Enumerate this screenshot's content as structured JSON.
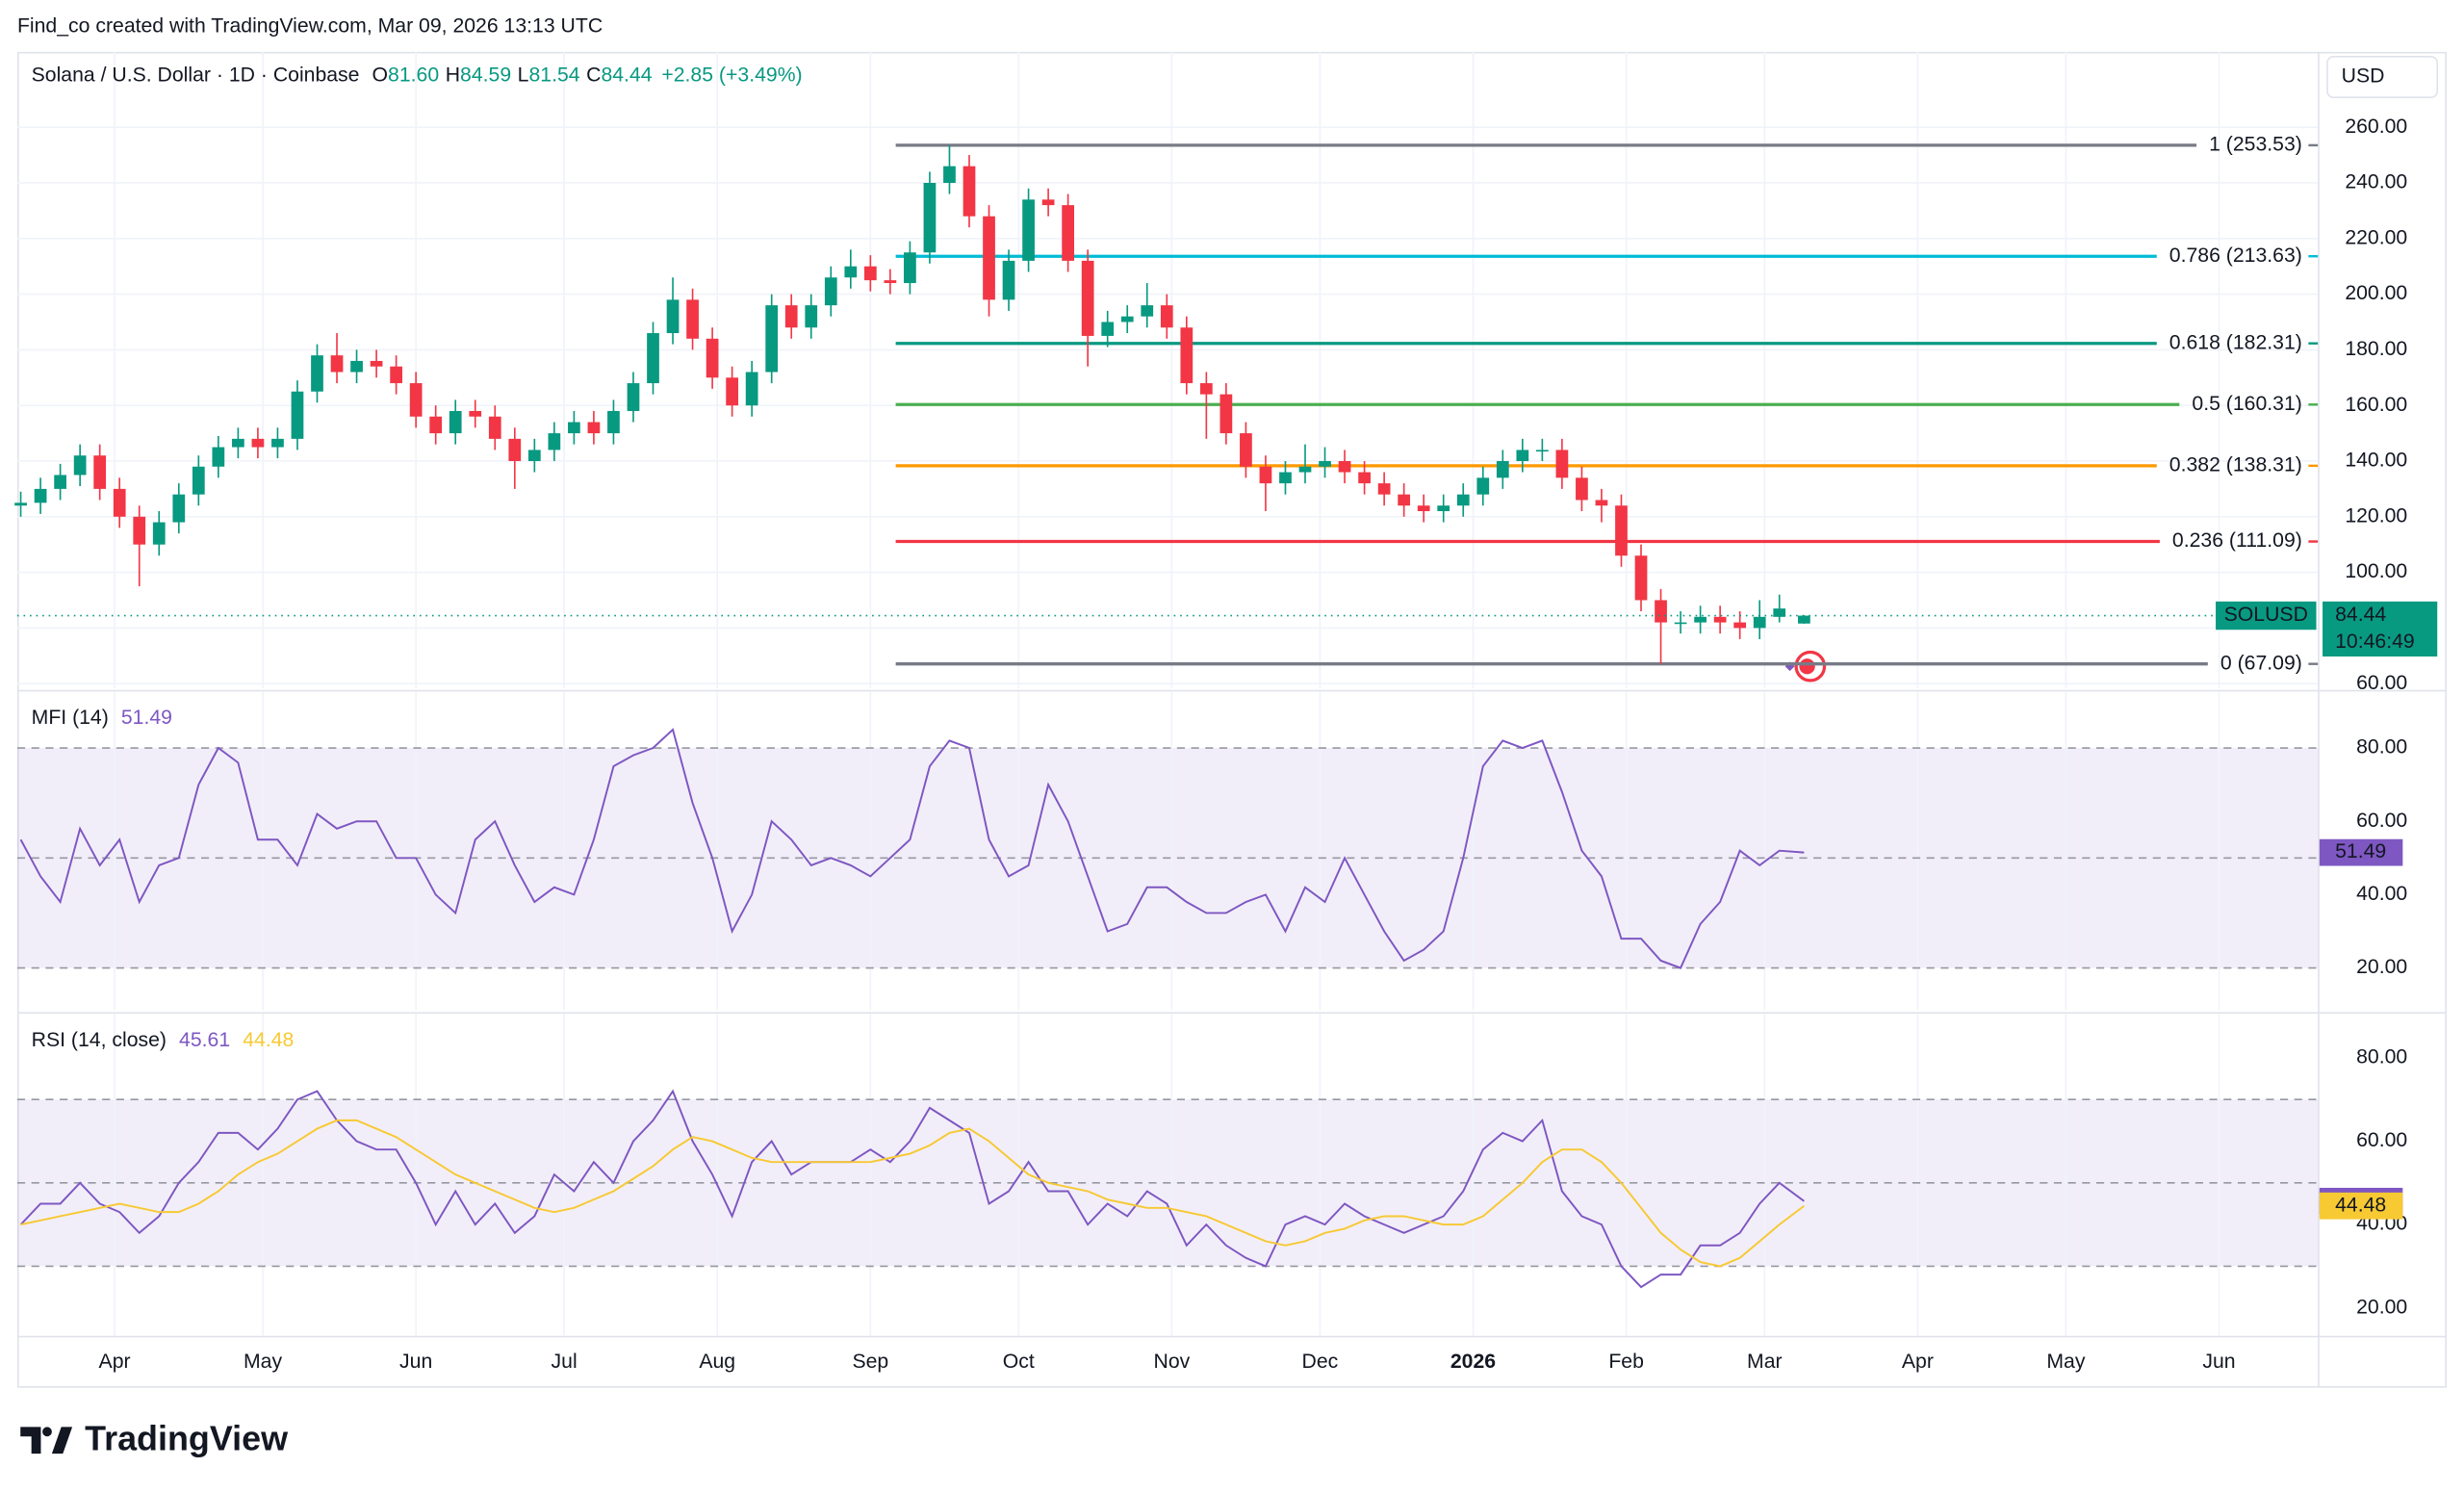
{
  "watermark": {
    "credit": "Find_co created with TradingView.com, Mar 09, 2026 13:13 UTC",
    "brand": "TradingView"
  },
  "chart_data": [
    {
      "type": "candlestick",
      "title": "Solana / U.S. Dollar · 1D · Coinbase",
      "legend": [
        {
          "key": "O",
          "value": "81.60"
        },
        {
          "key": "H",
          "value": "84.59"
        },
        {
          "key": "L",
          "value": "81.54"
        },
        {
          "key": "C",
          "value": "84.44"
        }
      ],
      "change": "+2.85 (+3.49%)",
      "legend_color": "#089981",
      "unit": "USD",
      "up_color": "#089981",
      "down_color": "#f23645",
      "grid": true,
      "xlim": [
        -0.7,
        465
      ],
      "xticks": [
        {
          "value": 19,
          "label": "Apr"
        },
        {
          "value": 49,
          "label": "May"
        },
        {
          "value": 80,
          "label": "Jun"
        },
        {
          "value": 110,
          "label": "Jul"
        },
        {
          "value": 141,
          "label": "Aug"
        },
        {
          "value": 172,
          "label": "Sep"
        },
        {
          "value": 202,
          "label": "Oct"
        },
        {
          "value": 233,
          "label": "Nov"
        },
        {
          "value": 263,
          "label": "Dec"
        },
        {
          "value": 294,
          "label": "2026",
          "bold": true
        },
        {
          "value": 325,
          "label": "Feb"
        },
        {
          "value": 353,
          "label": "Mar"
        },
        {
          "value": 384,
          "label": "Apr"
        },
        {
          "value": 414,
          "label": "May"
        },
        {
          "value": 445,
          "label": "Jun"
        }
      ],
      "ylim": [
        58.3,
        287.1
      ],
      "yticks": [
        {
          "value": 60,
          "label": "60.00"
        },
        {
          "value": 80,
          "label": "80.00"
        },
        {
          "value": 100,
          "label": "100.00"
        },
        {
          "value": 120,
          "label": "120.00"
        },
        {
          "value": 140,
          "label": "140.00"
        },
        {
          "value": 160,
          "label": "160.00"
        },
        {
          "value": 180,
          "label": "180.00"
        },
        {
          "value": 200,
          "label": "200.00"
        },
        {
          "value": 220,
          "label": "220.00"
        },
        {
          "value": 240,
          "label": "240.00"
        },
        {
          "value": 260,
          "label": "260.00"
        }
      ],
      "x": [
        0,
        4,
        8,
        12,
        16,
        20,
        24,
        28,
        32,
        36,
        40,
        44,
        48,
        52,
        56,
        60,
        64,
        68,
        72,
        76,
        80,
        84,
        88,
        92,
        96,
        100,
        104,
        108,
        112,
        116,
        120,
        124,
        128,
        132,
        136,
        140,
        144,
        148,
        152,
        156,
        160,
        164,
        168,
        172,
        176,
        180,
        184,
        188,
        192,
        196,
        200,
        204,
        208,
        212,
        216,
        220,
        224,
        228,
        232,
        236,
        240,
        244,
        248,
        252,
        256,
        260,
        264,
        268,
        272,
        276,
        280,
        284,
        288,
        292,
        296,
        300,
        304,
        308,
        312,
        316,
        320,
        324,
        328,
        332,
        336,
        340,
        344,
        348,
        352,
        356,
        361
      ],
      "open": [
        124,
        125,
        130,
        135,
        142,
        130,
        120,
        110,
        118,
        128,
        138,
        145,
        148,
        145,
        148,
        165,
        178,
        172,
        176,
        174,
        168,
        156,
        150,
        158,
        156,
        148,
        140,
        144,
        150,
        154,
        150,
        158,
        168,
        186,
        198,
        184,
        170,
        160,
        172,
        196,
        188,
        196,
        206,
        210,
        205,
        204,
        215,
        240,
        246,
        228,
        198,
        212,
        234,
        232,
        212,
        185,
        190,
        192,
        196,
        188,
        168,
        164,
        150,
        138,
        132,
        136,
        138,
        140,
        136,
        132,
        128,
        124,
        122,
        124,
        128,
        134,
        140,
        144,
        144,
        134,
        126,
        124,
        106,
        90,
        82,
        82,
        84,
        82,
        80,
        84,
        81.6
      ],
      "high": [
        129,
        134,
        139,
        146,
        146,
        134,
        124,
        122,
        132,
        142,
        149,
        152,
        152,
        152,
        169,
        182,
        186,
        180,
        180,
        178,
        172,
        160,
        162,
        162,
        160,
        152,
        148,
        154,
        158,
        158,
        162,
        172,
        190,
        206,
        202,
        188,
        174,
        176,
        200,
        200,
        200,
        210,
        216,
        214,
        209,
        219,
        244,
        253.53,
        250,
        232,
        216,
        238,
        238,
        236,
        216,
        194,
        196,
        204,
        200,
        192,
        172,
        168,
        154,
        142,
        140,
        146,
        145,
        144,
        140,
        136,
        132,
        128,
        128,
        132,
        138,
        144,
        148,
        148,
        148,
        138,
        130,
        128,
        110,
        94,
        86,
        88,
        88,
        86,
        90,
        92,
        84.59
      ],
      "low": [
        120,
        121,
        126,
        131,
        126,
        116,
        95,
        106,
        114,
        124,
        134,
        141,
        141,
        141,
        144,
        161,
        168,
        168,
        170,
        164,
        152,
        146,
        146,
        152,
        144,
        130,
        136,
        140,
        146,
        146,
        146,
        154,
        164,
        182,
        180,
        166,
        156,
        156,
        168,
        184,
        184,
        192,
        202,
        201,
        200,
        200,
        211,
        236,
        224,
        192,
        194,
        208,
        228,
        208,
        174,
        181,
        186,
        188,
        184,
        164,
        148,
        146,
        134,
        122,
        128,
        132,
        134,
        132,
        128,
        124,
        120,
        118,
        118,
        120,
        124,
        130,
        136,
        140,
        130,
        122,
        118,
        102,
        86,
        67.09,
        78,
        78,
        78,
        76,
        76,
        82,
        81.54
      ],
      "close": [
        125,
        130,
        135,
        142,
        130,
        120,
        110,
        118,
        128,
        138,
        145,
        148,
        145,
        148,
        165,
        178,
        172,
        176,
        174,
        168,
        156,
        150,
        158,
        156,
        148,
        140,
        144,
        150,
        154,
        150,
        158,
        168,
        186,
        198,
        184,
        170,
        160,
        172,
        196,
        188,
        196,
        206,
        210,
        205,
        204,
        215,
        240,
        246,
        228,
        198,
        212,
        234,
        232,
        212,
        185,
        190,
        192,
        196,
        188,
        168,
        164,
        150,
        138,
        132,
        136,
        138,
        140,
        136,
        132,
        128,
        124,
        122,
        124,
        128,
        134,
        140,
        144,
        144,
        134,
        126,
        124,
        106,
        90,
        82,
        82,
        84,
        82,
        80,
        84,
        87,
        84.44
      ],
      "fib_levels": [
        {
          "label": "1 (253.53)",
          "value": 253.53,
          "color": "#787b86"
        },
        {
          "label": "0.786 (213.63)",
          "value": 213.63,
          "color": "#00bcd4"
        },
        {
          "label": "0.618 (182.31)",
          "value": 182.31,
          "color": "#089981"
        },
        {
          "label": "0.5 (160.31)",
          "value": 160.31,
          "color": "#4caf50"
        },
        {
          "label": "0.382 (138.31)",
          "value": 138.31,
          "color": "#ff9800"
        },
        {
          "label": "0.236 (111.09)",
          "value": 111.09,
          "color": "#f23645"
        },
        {
          "label": "0 (67.09)",
          "value": 67.09,
          "color": "#787b86"
        }
      ],
      "last_price": {
        "symbol": "SOLUSD",
        "price": "84.44",
        "countdown": "10:46:49",
        "color": "#089981"
      }
    },
    {
      "type": "line",
      "title": "MFI (14)",
      "grid": true,
      "ylim": [
        8.4,
        95.4
      ],
      "yticks": [
        {
          "value": 20,
          "label": "20.00"
        },
        {
          "value": 40,
          "label": "40.00"
        },
        {
          "value": 60,
          "label": "60.00"
        },
        {
          "value": 80,
          "label": "80.00"
        }
      ],
      "band": [
        20,
        80
      ],
      "midline": 50,
      "band_color": "#7e57c2",
      "series": [
        {
          "color": "#7e57c2",
          "last_label": "51.49",
          "values": [
            55,
            45,
            38,
            58,
            48,
            55,
            38,
            48,
            50,
            70,
            80,
            76,
            55,
            55,
            48,
            62,
            58,
            60,
            60,
            50,
            50,
            40,
            35,
            55,
            60,
            48,
            38,
            42,
            40,
            55,
            75,
            78,
            80,
            85,
            65,
            50,
            30,
            40,
            60,
            55,
            48,
            50,
            48,
            45,
            50,
            55,
            75,
            82,
            80,
            55,
            45,
            48,
            70,
            60,
            45,
            30,
            32,
            42,
            42,
            38,
            35,
            35,
            38,
            40,
            30,
            42,
            38,
            50,
            40,
            30,
            22,
            25,
            30,
            50,
            75,
            82,
            80,
            82,
            68,
            52,
            45,
            28,
            28,
            22,
            20,
            32,
            38,
            52,
            48,
            52,
            51.49
          ]
        }
      ]
    },
    {
      "type": "line",
      "title": "RSI (14, close)",
      "grid": true,
      "ylim": [
        13.3,
        90.6
      ],
      "yticks": [
        {
          "value": 20,
          "label": "20.00"
        },
        {
          "value": 40,
          "label": "40.00"
        },
        {
          "value": 60,
          "label": "60.00"
        },
        {
          "value": 80,
          "label": "80.00"
        }
      ],
      "band": [
        30,
        70
      ],
      "midline": 50,
      "band_color": "#7e57c2",
      "series": [
        {
          "color": "#7e57c2",
          "last_label": "45.61",
          "values": [
            40,
            45,
            45,
            50,
            45,
            43,
            38,
            42,
            50,
            55,
            62,
            62,
            58,
            63,
            70,
            72,
            65,
            60,
            58,
            58,
            50,
            40,
            48,
            40,
            45,
            38,
            42,
            52,
            48,
            55,
            50,
            60,
            65,
            72,
            60,
            52,
            42,
            55,
            60,
            52,
            55,
            55,
            55,
            58,
            55,
            60,
            68,
            65,
            62,
            45,
            48,
            55,
            48,
            48,
            40,
            45,
            42,
            48,
            45,
            35,
            40,
            35,
            32,
            30,
            40,
            42,
            40,
            45,
            42,
            40,
            38,
            40,
            42,
            48,
            58,
            62,
            60,
            65,
            48,
            42,
            40,
            30,
            25,
            28,
            28,
            35,
            35,
            38,
            45,
            50,
            45.61
          ]
        },
        {
          "color": "#f7c933",
          "last_label": "44.48",
          "values": [
            40,
            41,
            42,
            43,
            44,
            45,
            44,
            43,
            43,
            45,
            48,
            52,
            55,
            57,
            60,
            63,
            65,
            65,
            63,
            61,
            58,
            55,
            52,
            50,
            48,
            46,
            44,
            43,
            44,
            46,
            48,
            51,
            54,
            58,
            61,
            60,
            58,
            56,
            55,
            55,
            55,
            55,
            55,
            55,
            56,
            57,
            59,
            62,
            63,
            60,
            56,
            52,
            50,
            49,
            48,
            46,
            45,
            44,
            44,
            43,
            42,
            40,
            38,
            36,
            35,
            36,
            38,
            39,
            41,
            42,
            42,
            41,
            40,
            40,
            42,
            46,
            50,
            55,
            58,
            58,
            55,
            50,
            44,
            38,
            34,
            31,
            30,
            32,
            36,
            40,
            44.48
          ]
        }
      ]
    }
  ]
}
